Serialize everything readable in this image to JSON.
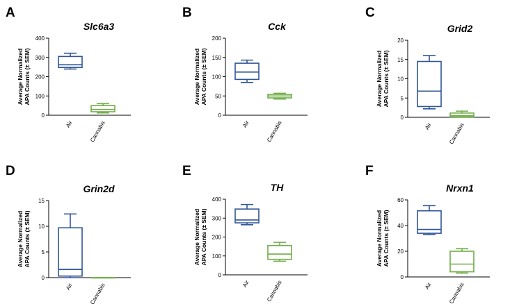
{
  "chart_data": [
    {
      "type": "box",
      "panel_letter": "A",
      "title": "Slc6a3",
      "ylabel": [
        "Average Normalized",
        "APA Counts (± SEM)"
      ],
      "ylim": [
        0,
        400
      ],
      "yticks": [
        0,
        100,
        200,
        300,
        400
      ],
      "categories": [
        "Air",
        "Cannabis"
      ],
      "boxes": [
        {
          "category": "Air",
          "min": 240,
          "q1": 248,
          "median": 262,
          "q3": 305,
          "max": 322,
          "color": "#2f5597"
        },
        {
          "category": "Cannabis",
          "min": 12,
          "q1": 18,
          "median": 30,
          "q3": 50,
          "max": 60,
          "color": "#70ad47"
        }
      ]
    },
    {
      "type": "box",
      "panel_letter": "B",
      "title": "Cck",
      "ylabel": [
        "Average Normalized",
        "APA Counts (± SEM)"
      ],
      "ylim": [
        0,
        200
      ],
      "yticks": [
        0,
        50,
        100,
        150,
        200
      ],
      "categories": [
        "Air",
        "Cannabis"
      ],
      "boxes": [
        {
          "category": "Air",
          "min": 85,
          "q1": 93,
          "median": 112,
          "q3": 135,
          "max": 143,
          "color": "#2f5597"
        },
        {
          "category": "Cannabis",
          "min": 42,
          "q1": 45,
          "median": 50,
          "q3": 54,
          "max": 57,
          "color": "#70ad47"
        }
      ]
    },
    {
      "type": "box",
      "panel_letter": "C",
      "title": "Grid2",
      "ylabel": [
        "Average Normalized",
        "APA Counts (± SEM)"
      ],
      "ylim": [
        0,
        20
      ],
      "yticks": [
        0,
        5,
        10,
        15,
        20
      ],
      "categories": [
        "Air",
        "Cannabis"
      ],
      "boxes": [
        {
          "category": "Air",
          "min": 2.2,
          "q1": 2.8,
          "median": 6.8,
          "q3": 14.5,
          "max": 16,
          "color": "#2f5597"
        },
        {
          "category": "Cannabis",
          "min": 0,
          "q1": 0.1,
          "median": 0.4,
          "q3": 1.1,
          "max": 1.6,
          "color": "#70ad47"
        }
      ]
    },
    {
      "type": "box",
      "panel_letter": "D",
      "title": "Grin2d",
      "ylabel": [
        "Average Normalized",
        "APA Counts (± SEM)"
      ],
      "ylim": [
        0,
        15
      ],
      "yticks": [
        0,
        5,
        10,
        15
      ],
      "categories": [
        "Air",
        "Cannabis"
      ],
      "boxes": [
        {
          "category": "Air",
          "min": 0,
          "q1": 0.3,
          "median": 1.6,
          "q3": 9.7,
          "max": 12.4,
          "color": "#2f5597"
        },
        {
          "category": "Cannabis",
          "min": 0,
          "q1": 0,
          "median": 0,
          "q3": 0,
          "max": 0,
          "color": "#70ad47"
        }
      ]
    },
    {
      "type": "box",
      "panel_letter": "E",
      "title": "TH",
      "ylabel": [
        "Average Normalized",
        "APA Counts (± SEM)"
      ],
      "ylim": [
        0,
        400
      ],
      "yticks": [
        0,
        100,
        200,
        300,
        400
      ],
      "categories": [
        "Air",
        "Cannabis"
      ],
      "boxes": [
        {
          "category": "Air",
          "min": 265,
          "q1": 275,
          "median": 290,
          "q3": 348,
          "max": 372,
          "color": "#2f5597"
        },
        {
          "category": "Cannabis",
          "min": 72,
          "q1": 82,
          "median": 110,
          "q3": 155,
          "max": 172,
          "color": "#70ad47"
        }
      ]
    },
    {
      "type": "box",
      "panel_letter": "F",
      "title": "Nrxn1",
      "ylabel": [
        "Average Normalized",
        "APA Counts (± SEM)"
      ],
      "ylim": [
        0,
        60
      ],
      "yticks": [
        0,
        20,
        40,
        60
      ],
      "categories": [
        "Air",
        "Cannabis"
      ],
      "boxes": [
        {
          "category": "Air",
          "min": 33,
          "q1": 34,
          "median": 37,
          "q3": 51.5,
          "max": 55.5,
          "color": "#2f5597"
        },
        {
          "category": "Cannabis",
          "min": 3,
          "q1": 4,
          "median": 10,
          "q3": 20,
          "max": 22,
          "color": "#70ad47"
        }
      ]
    }
  ]
}
